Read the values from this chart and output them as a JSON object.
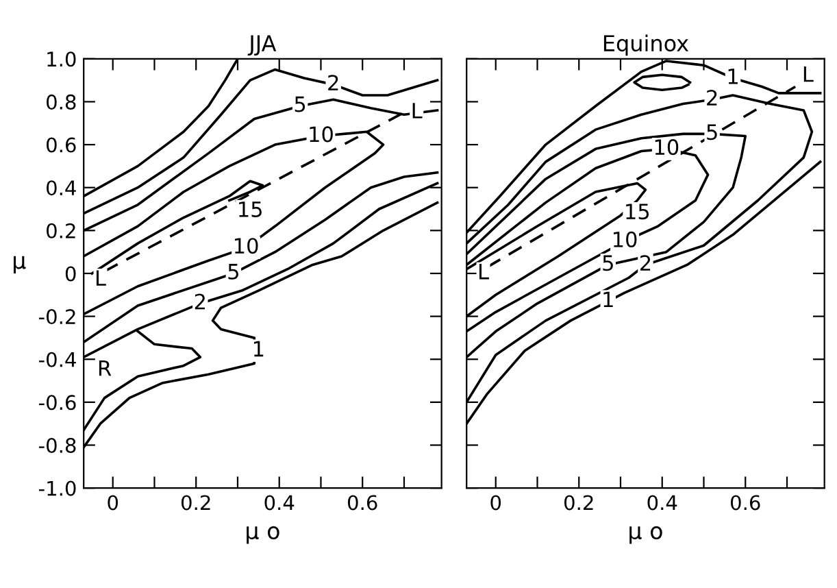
{
  "chart_data": [
    {
      "type": "line",
      "title": "JJA",
      "xlabel": "μ o",
      "ylabel": "μ",
      "xlim": [
        -0.07,
        0.79
      ],
      "ylim": [
        -1.0,
        1.0
      ],
      "xticks": [
        0,
        {
          "value": 0.1,
          "label": null
        },
        0.2,
        {
          "value": 0.3,
          "label": null
        },
        0.4,
        {
          "value": 0.5,
          "label": null
        },
        0.6,
        {
          "value": 0.7,
          "label": null
        }
      ],
      "yticks": [
        {
          "value": -1.0,
          "label": "-1.0"
        },
        -0.8,
        -0.6,
        -0.4,
        -0.2,
        0,
        0.2,
        0.4,
        0.6,
        0.8,
        {
          "value": 1.0,
          "label": "1.0"
        }
      ],
      "series": [
        {
          "color": "#000000",
          "x": [
            -0.07,
            0.06,
            0.17,
            0.23,
            0.27,
            0.3
          ],
          "values": [
            0.36,
            0.5,
            0.66,
            0.78,
            0.9,
            1.0
          ]
        },
        {
          "color": "#000000",
          "x": [
            -0.07,
            0.06,
            0.17,
            0.26,
            0.33,
            0.39,
            0.46,
            0.53,
            0.6,
            0.66,
            0.78
          ],
          "values": [
            0.28,
            0.4,
            0.54,
            0.74,
            0.9,
            0.95,
            0.91,
            0.88,
            0.83,
            0.83,
            0.9
          ]
        },
        {
          "color": "#000000",
          "x": [
            -0.07,
            0.06,
            0.23,
            0.34,
            0.45,
            0.53,
            0.62,
            0.7,
            0.78
          ],
          "values": [
            0.2,
            0.32,
            0.56,
            0.72,
            0.78,
            0.81,
            0.77,
            0.74,
            0.76
          ]
        },
        {
          "color": "#000000",
          "x": [
            -0.07,
            0.06,
            0.17,
            0.28,
            0.39,
            0.5,
            0.61,
            0.65,
            0.63,
            0.51,
            0.39,
            0.32,
            0.23,
            0.06,
            -0.07
          ],
          "values": [
            0.08,
            0.22,
            0.38,
            0.5,
            0.6,
            0.64,
            0.66,
            0.6,
            0.56,
            0.4,
            0.22,
            0.12,
            0.06,
            -0.06,
            -0.19
          ]
        },
        {
          "color": "#000000",
          "x": [
            -0.05,
            0.06,
            0.17,
            0.28,
            0.33,
            0.36,
            0.33,
            0.28
          ],
          "values": [
            0.0,
            0.14,
            0.26,
            0.36,
            0.43,
            0.41,
            0.38,
            0.34
          ]
        },
        {
          "color": "#000000",
          "x": [
            -0.07,
            0.06,
            0.29,
            0.39,
            0.51,
            0.62,
            0.7,
            0.78
          ],
          "values": [
            -0.32,
            -0.15,
            0.0,
            0.1,
            0.25,
            0.4,
            0.45,
            0.47
          ]
        },
        {
          "color": "#000000",
          "x": [
            -0.07,
            0.06,
            0.21,
            0.31,
            0.42,
            0.53,
            0.64,
            0.78
          ],
          "values": [
            -0.39,
            -0.26,
            -0.14,
            -0.08,
            0.02,
            0.14,
            0.3,
            0.42
          ]
        },
        {
          "color": "#000000",
          "x": [
            0.06,
            0.1,
            0.19,
            0.21,
            0.17,
            0.06,
            -0.02,
            -0.07
          ],
          "values": [
            -0.27,
            -0.33,
            -0.35,
            -0.39,
            -0.43,
            -0.48,
            -0.58,
            -0.73
          ]
        },
        {
          "color": "#000000",
          "x": [
            0.78,
            0.65,
            0.55,
            0.48,
            0.35,
            0.26,
            0.24,
            0.26,
            0.34,
            0.34,
            0.23,
            0.12,
            0.04,
            -0.03,
            -0.07
          ],
          "values": [
            0.33,
            0.2,
            0.08,
            0.04,
            -0.08,
            -0.16,
            -0.22,
            -0.26,
            -0.3,
            -0.42,
            -0.47,
            -0.51,
            -0.58,
            -0.7,
            -0.81
          ]
        },
        {
          "color": "#000000",
          "line_style": "dashed",
          "x": [
            -0.02,
            0.7
          ],
          "values": [
            0.01,
            0.75
          ]
        }
      ],
      "annotations": [
        {
          "text": "2",
          "x": 0.53,
          "y": 0.88
        },
        {
          "text": "5",
          "x": 0.45,
          "y": 0.78
        },
        {
          "text": "10",
          "x": 0.5,
          "y": 0.64
        },
        {
          "text": "15",
          "x": 0.33,
          "y": 0.29
        },
        {
          "text": "10",
          "x": 0.32,
          "y": 0.12
        },
        {
          "text": "5",
          "x": 0.29,
          "y": 0.0
        },
        {
          "text": "2",
          "x": 0.21,
          "y": -0.14
        },
        {
          "text": "1",
          "x": 0.35,
          "y": -0.36
        },
        {
          "text": "L",
          "x": -0.03,
          "y": -0.03
        },
        {
          "text": "L",
          "x": 0.73,
          "y": 0.75
        },
        {
          "text": "R",
          "x": -0.02,
          "y": -0.45
        }
      ]
    },
    {
      "type": "line",
      "title": "Equinox",
      "xlabel": "μ o",
      "xlim": [
        -0.07,
        0.79
      ],
      "ylim": [
        -1.0,
        1.0
      ],
      "tick_labels": "x",
      "xticks": [
        0,
        {
          "value": 0.1,
          "label": null
        },
        0.2,
        {
          "value": 0.3,
          "label": null
        },
        0.4,
        {
          "value": 0.5,
          "label": null
        },
        0.6,
        {
          "value": 0.7,
          "label": null
        }
      ],
      "yticks": [
        -1,
        -0.8,
        -0.6,
        -0.4,
        -0.2,
        0,
        0.2,
        0.4,
        0.6,
        0.8,
        1
      ],
      "series": [
        {
          "color": "#000000",
          "x": [
            -0.07,
            0.01,
            0.12,
            0.24,
            0.35,
            0.41,
            0.5,
            0.57,
            0.64,
            0.68,
            0.78
          ],
          "values": [
            0.19,
            0.36,
            0.6,
            0.78,
            0.94,
            0.99,
            0.97,
            0.91,
            0.87,
            0.84,
            0.84
          ]
        },
        {
          "color": "#000000",
          "x": [
            0.467,
            0.447,
            0.4,
            0.353,
            0.333,
            0.353,
            0.4,
            0.447,
            0.463
          ],
          "values": [
            0.89,
            0.915,
            0.925,
            0.915,
            0.89,
            0.865,
            0.855,
            0.865,
            0.88
          ]
        },
        {
          "color": "#000000",
          "x": [
            -0.07,
            0.03,
            0.12,
            0.24,
            0.35,
            0.45,
            0.52,
            0.57,
            0.66,
            0.74,
            0.76,
            0.74,
            0.63,
            0.5,
            0.36,
            0.32,
            0.12,
            0.0,
            -0.07
          ],
          "values": [
            0.14,
            0.32,
            0.52,
            0.67,
            0.74,
            0.79,
            0.81,
            0.83,
            0.79,
            0.76,
            0.66,
            0.54,
            0.34,
            0.13,
            0.04,
            -0.02,
            -0.22,
            -0.38,
            -0.6
          ]
        },
        {
          "color": "#000000",
          "x": [
            -0.07,
            0.12,
            0.24,
            0.35,
            0.45,
            0.52,
            0.6,
            0.59,
            0.57,
            0.5,
            0.41,
            0.27,
            0.1,
            0.0,
            -0.07
          ],
          "values": [
            0.09,
            0.44,
            0.58,
            0.63,
            0.65,
            0.65,
            0.64,
            0.54,
            0.4,
            0.24,
            0.1,
            0.04,
            -0.14,
            -0.27,
            -0.39
          ]
        },
        {
          "color": "#000000",
          "x": [
            -0.07,
            0.12,
            0.24,
            0.35,
            0.41,
            0.48,
            0.51,
            0.48,
            0.39,
            0.31,
            0.15,
            0.0,
            -0.07
          ],
          "values": [
            0.04,
            0.33,
            0.49,
            0.57,
            0.58,
            0.55,
            0.46,
            0.34,
            0.22,
            0.15,
            -0.02,
            -0.18,
            -0.27
          ]
        },
        {
          "color": "#000000",
          "x": [
            -0.07,
            0.1,
            0.24,
            0.34,
            0.36,
            0.34,
            0.3,
            0.15,
            0.0,
            -0.07
          ],
          "values": [
            0.02,
            0.22,
            0.38,
            0.42,
            0.39,
            0.34,
            0.27,
            0.08,
            -0.1,
            -0.2
          ]
        },
        {
          "color": "#000000",
          "x": [
            0.78,
            0.57,
            0.46,
            0.31,
            0.18,
            0.07,
            -0.02,
            -0.07
          ],
          "values": [
            0.52,
            0.18,
            0.04,
            -0.09,
            -0.22,
            -0.36,
            -0.56,
            -0.7
          ]
        },
        {
          "color": "#000000",
          "line_style": "dashed",
          "x": [
            -0.02,
            0.72
          ],
          "values": [
            0.03,
            0.87
          ]
        }
      ],
      "annotations": [
        {
          "text": "1",
          "x": 0.57,
          "y": 0.91
        },
        {
          "text": "2",
          "x": 0.52,
          "y": 0.81
        },
        {
          "text": "5",
          "x": 0.52,
          "y": 0.65
        },
        {
          "text": "10",
          "x": 0.41,
          "y": 0.58
        },
        {
          "text": "15",
          "x": 0.34,
          "y": 0.28
        },
        {
          "text": "10",
          "x": 0.31,
          "y": 0.15
        },
        {
          "text": "5",
          "x": 0.27,
          "y": 0.04
        },
        {
          "text": "2",
          "x": 0.36,
          "y": 0.04
        },
        {
          "text": "1",
          "x": 0.27,
          "y": -0.13
        },
        {
          "text": "L",
          "x": -0.03,
          "y": 0.0
        },
        {
          "text": "L",
          "x": 0.75,
          "y": 0.92
        }
      ]
    }
  ]
}
